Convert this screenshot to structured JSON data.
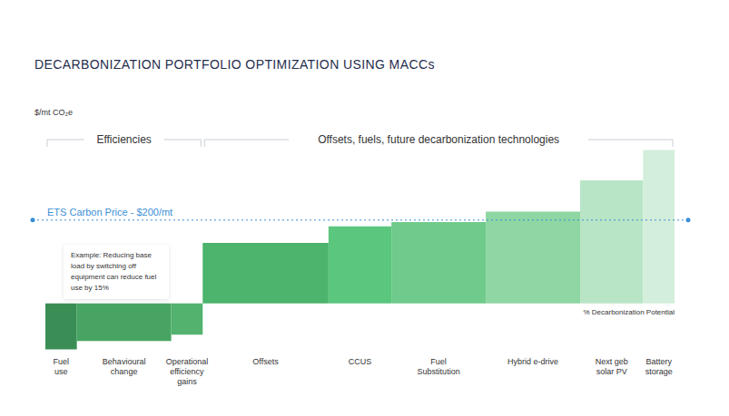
{
  "chart_data": {
    "type": "bar",
    "title": "DECARBONIZATION PORTFOLIO OPTIMIZATION USING MACCs",
    "y_label": "$/mt CO₂e",
    "x_label": "% Decarbonization Potential",
    "categories": [
      "Fuel use",
      "Behavioural change",
      "Operational efficiency gains",
      "Offsets",
      "CCUS",
      "Fuel Substitution",
      "Hybrid e-drive",
      "Next geb solar PV",
      "Battery storage"
    ],
    "values": [
      -110,
      -90,
      -75,
      145,
      185,
      195,
      220,
      295,
      368
    ],
    "widths": [
      5,
      15,
      5,
      20,
      10,
      15,
      15,
      10,
      5
    ],
    "colors": [
      "#3a8e55",
      "#47a462",
      "#52b26e",
      "#4cb46c",
      "#5bc67e",
      "#6fcb8b",
      "#8ed6a2",
      "#b8e5c5",
      "#d3eedb"
    ],
    "xlim": [
      0,
      100
    ],
    "xticks": [],
    "ylim": [
      -120,
      380
    ],
    "yticks": [],
    "tick_labels": false,
    "grid": false,
    "groups": [
      {
        "label": "Efficiencies",
        "categories": [
          "Fuel use",
          "Behavioural change",
          "Operational efficiency gains"
        ]
      },
      {
        "label": "Offsets, fuels, future decarbonization technologies",
        "categories": [
          "Offsets",
          "CCUS",
          "Fuel Substitution",
          "Hybrid e-drive",
          "Next geb solar PV",
          "Battery storage"
        ]
      }
    ],
    "reference_lines": [
      {
        "label": "ETS Carbon Price - $200/mt",
        "value": 200,
        "color": "#3a8fd6",
        "line_style": "dotted"
      }
    ],
    "annotations": [
      {
        "text": "Example: Reducing base load by switching off equipment can reduce fuel use by 15%"
      }
    ]
  }
}
